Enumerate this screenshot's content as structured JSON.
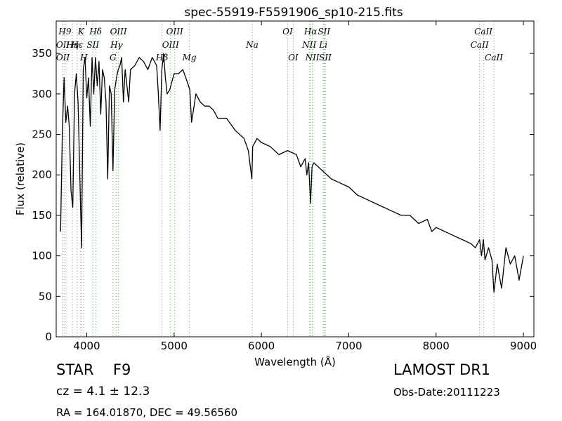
{
  "chart_data": {
    "type": "line",
    "title": "spec-55919-F5591906_sp10-215.fits",
    "xlabel": "Wavelength (Å)",
    "ylabel": "Flux (relative)",
    "xlim": [
      3650,
      9120
    ],
    "ylim": [
      0,
      390
    ],
    "xticks": [
      4000,
      5000,
      6000,
      7000,
      8000,
      9000
    ],
    "yticks": [
      0,
      50,
      100,
      150,
      200,
      250,
      300,
      350
    ],
    "grid": false,
    "series": [
      {
        "color": "#000000",
        "x": [
          3700,
          3720,
          3740,
          3760,
          3780,
          3800,
          3820,
          3840,
          3860,
          3880,
          3900,
          3920,
          3940,
          3960,
          3980,
          4000,
          4020,
          4040,
          4060,
          4080,
          4100,
          4120,
          4140,
          4160,
          4180,
          4200,
          4220,
          4240,
          4260,
          4280,
          4300,
          4320,
          4340,
          4360,
          4380,
          4400,
          4420,
          4440,
          4460,
          4480,
          4500,
          4550,
          4600,
          4650,
          4700,
          4750,
          4800,
          4820,
          4840,
          4860,
          4880,
          4900,
          4920,
          4950,
          5000,
          5050,
          5100,
          5150,
          5180,
          5200,
          5250,
          5300,
          5350,
          5400,
          5450,
          5500,
          5600,
          5700,
          5800,
          5850,
          5890,
          5900,
          5950,
          6000,
          6100,
          6200,
          6300,
          6400,
          6450,
          6500,
          6520,
          6540,
          6563,
          6580,
          6600,
          6650,
          6700,
          6800,
          6900,
          7000,
          7100,
          7200,
          7300,
          7400,
          7500,
          7600,
          7700,
          7800,
          7900,
          7950,
          8000,
          8100,
          8200,
          8300,
          8400,
          8450,
          8498,
          8520,
          8542,
          8560,
          8600,
          8640,
          8662,
          8700,
          8750,
          8800,
          8850,
          8900,
          8950,
          9000
        ],
        "y": [
          130,
          250,
          320,
          265,
          285,
          260,
          180,
          160,
          300,
          325,
          290,
          200,
          110,
          330,
          345,
          295,
          320,
          260,
          345,
          300,
          345,
          310,
          340,
          275,
          330,
          320,
          290,
          195,
          310,
          300,
          205,
          305,
          320,
          330,
          335,
          345,
          290,
          330,
          310,
          290,
          330,
          335,
          345,
          340,
          330,
          345,
          335,
          300,
          255,
          330,
          350,
          320,
          300,
          305,
          325,
          325,
          330,
          315,
          305,
          265,
          300,
          290,
          285,
          285,
          280,
          270,
          270,
          255,
          245,
          230,
          195,
          235,
          245,
          240,
          235,
          225,
          230,
          225,
          210,
          220,
          200,
          215,
          165,
          210,
          215,
          210,
          205,
          195,
          190,
          185,
          175,
          170,
          165,
          160,
          155,
          150,
          150,
          140,
          145,
          130,
          135,
          130,
          125,
          120,
          115,
          110,
          120,
          100,
          120,
          95,
          110,
          95,
          55,
          90,
          60,
          110,
          90,
          100,
          70,
          100
        ]
      }
    ],
    "line_markers": [
      {
        "name": "OII",
        "wl": 3727,
        "row": 1
      },
      {
        "name": "OII",
        "wl": 3727,
        "row": 2
      },
      {
        "name": "H9",
        "wl": 3750,
        "row": 0
      },
      {
        "name": "Hη",
        "wl": 3835,
        "row": 1
      },
      {
        "name": "Hε",
        "wl": 3889,
        "row": 1
      },
      {
        "name": "K",
        "wl": 3934,
        "row": 0
      },
      {
        "name": "H",
        "wl": 3968,
        "row": 2
      },
      {
        "name": "SII",
        "wl": 4070,
        "row": 1
      },
      {
        "name": "Hδ",
        "wl": 4102,
        "row": 0
      },
      {
        "name": "G",
        "wl": 4300,
        "row": 2
      },
      {
        "name": "Hγ",
        "wl": 4341,
        "row": 1
      },
      {
        "name": "OIII",
        "wl": 4363,
        "row": 0
      },
      {
        "name": "Hβ",
        "wl": 4861,
        "row": 2
      },
      {
        "name": "OIII",
        "wl": 4959,
        "row": 1
      },
      {
        "name": "OIII",
        "wl": 5007,
        "row": 0
      },
      {
        "name": "Mg",
        "wl": 5175,
        "row": 2
      },
      {
        "name": "Na",
        "wl": 5894,
        "row": 1
      },
      {
        "name": "OI",
        "wl": 6300,
        "row": 0
      },
      {
        "name": "OI",
        "wl": 6364,
        "row": 2
      },
      {
        "name": "NII",
        "wl": 6548,
        "row": 1
      },
      {
        "name": "Hα",
        "wl": 6563,
        "row": 0
      },
      {
        "name": "NII",
        "wl": 6583,
        "row": 2
      },
      {
        "name": "Li",
        "wl": 6708,
        "row": 1
      },
      {
        "name": "SII",
        "wl": 6717,
        "row": 0
      },
      {
        "name": "SII",
        "wl": 6731,
        "row": 2
      },
      {
        "name": "CaII",
        "wl": 8498,
        "row": 1
      },
      {
        "name": "CaII",
        "wl": 8542,
        "row": 0
      },
      {
        "name": "CaII",
        "wl": 8662,
        "row": 2
      }
    ],
    "marker_color": "#55aa55"
  },
  "info": {
    "class": "STAR",
    "subclass": "F9",
    "survey": "LAMOST DR1",
    "cz": "cz = 4.1 ± 12.3",
    "obs_date": "Obs-Date:20111223",
    "radec": "RA = 164.01870, DEC = 49.56560"
  }
}
